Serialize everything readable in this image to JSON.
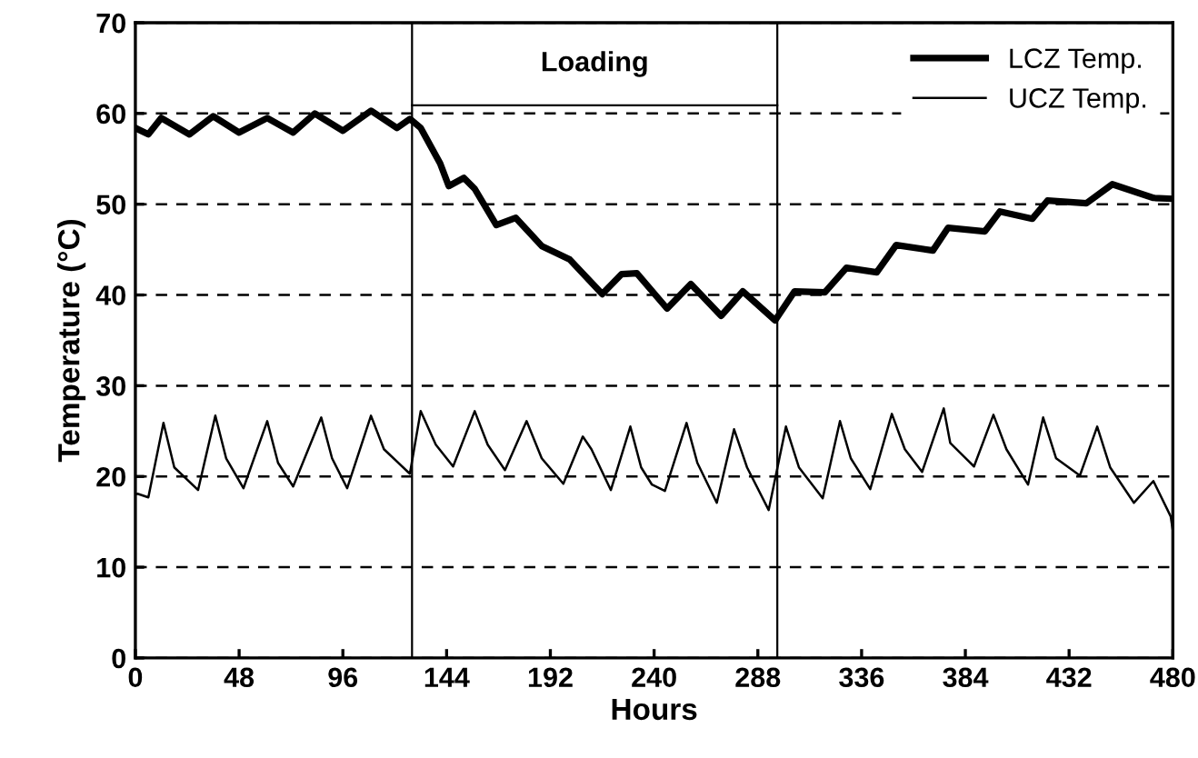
{
  "chart_data": {
    "type": "line",
    "xlabel": "Hours",
    "ylabel": "Temperature (°C)",
    "xlim": [
      0,
      480
    ],
    "ylim": [
      0,
      70
    ],
    "xticks": [
      0,
      48,
      96,
      144,
      192,
      240,
      288,
      336,
      384,
      432,
      480
    ],
    "yticks": [
      0,
      10,
      20,
      30,
      40,
      50,
      60,
      70
    ],
    "grid": "y",
    "legend": "top right",
    "marker": "none",
    "line_style": "solid",
    "ref_lines": [
      {
        "axis": "x",
        "value": 128,
        "color": "#000000"
      },
      {
        "axis": "x",
        "value": 297,
        "color": "#000000"
      }
    ],
    "annotations": [
      "Loading"
    ],
    "series": [
      {
        "name": "LCZ Temp.",
        "color": "#000000",
        "x": [
          0,
          6,
          12,
          25,
          36,
          48,
          61,
          73,
          83,
          96,
          109,
          121,
          127,
          132,
          141,
          145,
          152,
          157,
          167,
          176,
          188,
          201,
          216,
          225,
          232,
          246,
          257,
          271,
          281,
          296,
          305,
          319,
          329,
          343,
          352,
          369,
          376,
          393,
          400,
          415,
          422,
          440,
          452,
          471,
          480
        ],
        "values": [
          58.4,
          57.7,
          59.5,
          57.7,
          59.7,
          57.9,
          59.5,
          57.9,
          60,
          58.1,
          60.3,
          58.4,
          59.4,
          58.4,
          54.5,
          52,
          52.9,
          51.7,
          47.7,
          48.5,
          45.4,
          43.9,
          40.1,
          42.3,
          42.4,
          38.5,
          41.2,
          37.7,
          40.4,
          37.2,
          40.4,
          40.3,
          43,
          42.5,
          45.5,
          44.9,
          47.4,
          47,
          49.2,
          48.4,
          50.4,
          50.1,
          52.2,
          50.7,
          50.6
        ]
      },
      {
        "name": "UCZ Temp.",
        "color": "#000000",
        "x": [
          0,
          1,
          6,
          13,
          18,
          29,
          37,
          42,
          50,
          61,
          66,
          73,
          86,
          91,
          98,
          109,
          115,
          127,
          132,
          139,
          147,
          157,
          163,
          171,
          181,
          188,
          198,
          207,
          211,
          220,
          229,
          234,
          239,
          245,
          255,
          260,
          269,
          277,
          283,
          293,
          301,
          307,
          318,
          326,
          331,
          340,
          350,
          356,
          364,
          374,
          377,
          388,
          397,
          403,
          413,
          420,
          426,
          437,
          445,
          451,
          462,
          471,
          479,
          480
        ],
        "values": [
          18,
          18.1,
          17.7,
          25.9,
          21,
          18.5,
          26.7,
          22,
          18.7,
          26.1,
          21.5,
          18.9,
          26.5,
          22,
          18.7,
          26.7,
          23,
          20.3,
          27.2,
          23.5,
          21.1,
          27.2,
          23.5,
          20.7,
          26.1,
          22,
          19.2,
          24.4,
          23,
          18.5,
          25.5,
          21,
          19.1,
          18.4,
          25.9,
          21.5,
          17.1,
          25.2,
          21,
          16.3,
          25.5,
          21,
          17.6,
          26.1,
          22,
          18.6,
          26.9,
          23,
          20.5,
          27.5,
          23.7,
          21.1,
          26.8,
          23,
          19.1,
          26.5,
          22,
          20.1,
          25.5,
          21,
          17.1,
          19.5,
          15.6,
          14
        ]
      }
    ]
  }
}
